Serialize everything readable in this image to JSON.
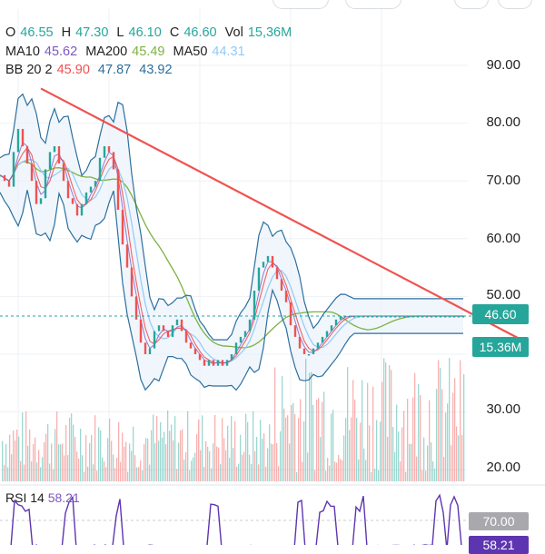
{
  "ohlcv": {
    "open_label": "O",
    "open": "46.55",
    "high_label": "H",
    "high": "47.30",
    "low_label": "L",
    "low": "46.10",
    "close_label": "C",
    "close": "46.60",
    "vol_label": "Vol",
    "vol": "15,36M"
  },
  "moving_averages": {
    "ma10_label": "MA10",
    "ma10": "45.62",
    "ma200_label": "MA200",
    "ma200": "45.49",
    "ma50_label": "MA50",
    "ma50": "44.31"
  },
  "bollinger": {
    "label": "BB 20 2",
    "basis": "45.90",
    "upper": "47.87",
    "lower": "43.92"
  },
  "price_tags": {
    "last_price": "46.60",
    "volume": "15.36M"
  },
  "rsi": {
    "label": "RSI 14",
    "value": "58.21",
    "level_tag": "70.00",
    "partial_tag": "58.21"
  },
  "colors": {
    "background": "#ffffff",
    "band_fill": "#e3eefa",
    "close_line": "#26a69a",
    "ma10": "#7e57c2",
    "ma200": "#7cb342",
    "ma50": "#90caf9",
    "bb_basis": "#ef5350",
    "bb_band": "#2d6f9e",
    "trendline": "#ef5350",
    "volume_up": "#26a69a",
    "volume_down": "#ef5350",
    "rsi_line": "#5e35b1",
    "price_tag": "#26a69a"
  },
  "chart_data": {
    "type": "line",
    "title": "",
    "y_axis_ticks": [
      "90.00",
      "80.00",
      "70.00",
      "60.00",
      "50.00",
      "40.00",
      "30.00",
      "20.00"
    ],
    "ylim": [
      17,
      97
    ],
    "x": [
      0,
      5,
      10,
      15,
      20,
      25,
      30,
      35,
      40,
      45,
      50,
      55,
      60,
      65,
      70,
      75,
      80,
      85,
      90,
      95,
      100,
      105,
      110,
      115,
      120,
      125,
      130,
      135,
      140,
      145,
      150,
      155,
      160,
      165,
      170,
      175,
      180,
      185,
      190,
      195,
      200,
      205,
      210,
      215,
      220,
      225,
      230,
      235,
      240,
      245,
      250,
      255,
      260,
      265,
      270,
      275,
      280,
      285,
      290,
      295,
      300,
      305,
      310,
      315,
      320,
      325,
      330,
      335,
      340,
      345,
      350,
      355,
      360,
      365,
      370,
      375,
      380,
      385,
      390,
      395,
      400,
      405,
      410,
      415,
      420,
      425,
      430,
      435,
      440,
      445,
      450,
      455,
      460,
      465,
      470,
      475,
      480,
      485,
      490,
      495,
      500,
      505,
      510
    ],
    "series": [
      {
        "name": "Close",
        "values": [
          71,
          70,
          69,
          75,
          79,
          76,
          73,
          70,
          66,
          67,
          72,
          75,
          76,
          73,
          70,
          67,
          66,
          64,
          66,
          68,
          69,
          70,
          74,
          76,
          75,
          72,
          65,
          59,
          55,
          50,
          46,
          42,
          40,
          41,
          44,
          45,
          44,
          43,
          45,
          46,
          44,
          42,
          41,
          40,
          39,
          38,
          39,
          38,
          39,
          38,
          39,
          40,
          42,
          43,
          44,
          46,
          51,
          55,
          56,
          57,
          55,
          53,
          51,
          49,
          45,
          43,
          41,
          40,
          40,
          41,
          42,
          43,
          44,
          45,
          46,
          46.6,
          46.6,
          46.6,
          46.6,
          46.6,
          46.6,
          46.6,
          46.6,
          46.6,
          46.6,
          46.6,
          46.6,
          46.6,
          46.6,
          46.6,
          46.6,
          46.6,
          46.6,
          46.6,
          46.6,
          46.6,
          46.6,
          46.6,
          46.6,
          46.6,
          46.6,
          46.6,
          46.6
        ]
      }
    ],
    "annotations": [
      {
        "name": "",
        "type": "trendline",
        "start": [
          45,
          86
        ],
        "end": [
          580,
          42
        ]
      }
    ]
  }
}
